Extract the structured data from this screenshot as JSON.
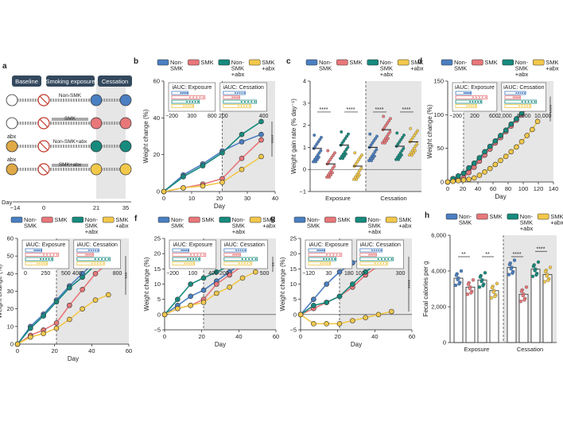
{
  "colors": {
    "non_smk": "#4a7fc1",
    "smk": "#e8777a",
    "non_smk_abx": "#178a7e",
    "smk_abx": "#f2c84b",
    "shade": "#e6e6e6",
    "baseline_box": "#34495e"
  },
  "panel_a": {
    "label": "a",
    "phases": [
      "Baseline",
      "Smoking exposure",
      "Cessation"
    ],
    "groups": [
      {
        "label": "Non-SMK",
        "abx": ""
      },
      {
        "label": "SMK",
        "abx": ""
      },
      {
        "label": "Non-SMK+abx",
        "abx": "abx"
      },
      {
        "label": "SMK+abx",
        "abx": "abx"
      }
    ],
    "day_label": "Day",
    "ticks": [
      "−14",
      "0",
      "21",
      "35"
    ]
  },
  "panel_b": {
    "label": "b",
    "legend": [
      "Non-\nSMK",
      "SMK",
      "Non-\nSMK\n+abx",
      "SMK\n+abx"
    ],
    "inset_titles": [
      "iAUC: Exposure",
      "iAUC: Cessation"
    ],
    "inset_ticks_1": [
      "−200",
      "300",
      "800"
    ],
    "inset_ticks_2": [
      "200",
      "400"
    ],
    "sig": "****"
  },
  "panel_c": {
    "label": "c",
    "legend": [
      "Non-\nSMK",
      "SMK",
      "Non-\nSMK\n+abx",
      "SMK\n+abx"
    ],
    "sig": "****"
  },
  "panel_d": {
    "label": "d",
    "legend": [
      "Non-\nSMK",
      "SMK",
      "Non-\nSMK\n+abx",
      "SMK\n+abx"
    ],
    "inset_titles": [
      "iAUC: Exposure",
      "iAUC: Cessation"
    ],
    "inset_ticks_1": [
      "−200",
      "200",
      "600"
    ],
    "inset_ticks_2": [
      "2,000",
      "6,000",
      "10,000"
    ],
    "sig": "****"
  },
  "panel_e": {
    "label": "e",
    "legend": [
      "Non-\nSMK",
      "SMK",
      "Non-\nSMK\n+abx",
      "SMK\n+abx"
    ],
    "inset_titles": [
      "iAUC: Exposure",
      "iAUC: Cessation"
    ],
    "inset_ticks_1": [
      "0",
      "250",
      "500"
    ],
    "inset_ticks_2": [
      "400",
      "800"
    ],
    "sig": "***"
  },
  "panel_f": {
    "label": "f",
    "legend": [
      "Non-\nSMK",
      "SMK",
      "Non-\nSMK\n+abx",
      "SMK\n+abx"
    ],
    "inset_titles": [
      "iAUC: Exposure",
      "iAUC: Cessation"
    ],
    "inset_ticks_1": [
      "−200",
      "100",
      "400"
    ],
    "inset_ticks_2": [
      "200",
      "500"
    ],
    "sig": "**"
  },
  "panel_g": {
    "label": "g",
    "legend": [
      "Non-\nSMK",
      "SMK",
      "Non-\nSMK\n+abx",
      "SMK\n+abx"
    ],
    "inset_titles": [
      "iAUC: Exposure",
      "iAUC: Cessation"
    ],
    "inset_ticks_1": [
      "−120",
      "30",
      "180"
    ],
    "inset_ticks_2": [
      "100",
      "300"
    ],
    "sig": "****"
  },
  "panel_h": {
    "label": "h",
    "legend": [
      "Non-\nSMK",
      "SMK",
      "Non-\nSMK\n+abx",
      "SMK\n+abx"
    ],
    "sig": [
      "**",
      "**",
      "****",
      "****"
    ]
  },
  "chart_data": [
    {
      "type": "line",
      "panel": "b",
      "xlabel": "Day",
      "ylabel": "Weight change (%)",
      "xlim": [
        0,
        40
      ],
      "ylim": [
        0,
        60
      ],
      "xticks": [
        0,
        10,
        20,
        30,
        40
      ],
      "yticks": [
        0,
        20,
        40,
        60
      ],
      "shade_from": 21,
      "series": [
        {
          "key": "non_smk",
          "x": [
            0,
            7,
            14,
            21,
            28,
            35
          ],
          "y": [
            0,
            9,
            15,
            22,
            27,
            31
          ]
        },
        {
          "key": "smk",
          "x": [
            0,
            7,
            14,
            21,
            28,
            35
          ],
          "y": [
            0,
            2,
            4,
            7,
            18,
            28
          ]
        },
        {
          "key": "non_smk_abx",
          "x": [
            0,
            7,
            14,
            21,
            28,
            35
          ],
          "y": [
            0,
            8,
            14,
            21,
            31,
            38
          ]
        },
        {
          "key": "smk_abx",
          "x": [
            0,
            7,
            14,
            21,
            28,
            35
          ],
          "y": [
            0,
            2,
            3,
            5,
            12,
            19
          ]
        }
      ]
    },
    {
      "type": "scatter",
      "panel": "c",
      "xlabel": "",
      "ylabel": "Weight gain rate (% day⁻¹)",
      "ylim": [
        -1,
        4
      ],
      "yticks": [
        -1,
        0,
        1,
        2,
        3,
        4
      ],
      "categories": [
        "Exposure",
        "Cessation"
      ],
      "means": {
        "Exposure": [
          0.95,
          0.25,
          1.1,
          0.15
        ],
        "Cessation": [
          1.0,
          1.8,
          1.05,
          1.25
        ]
      }
    },
    {
      "type": "line",
      "panel": "d",
      "xlabel": "Day",
      "ylabel": "Weight change (%)",
      "xlim": [
        0,
        140
      ],
      "ylim": [
        0,
        150
      ],
      "xticks": [
        0,
        20,
        40,
        60,
        80,
        100,
        120,
        140
      ],
      "yticks": [
        0,
        50,
        100,
        150
      ],
      "shade_from": 21,
      "series": [
        {
          "key": "non_smk",
          "x": [
            0,
            7,
            14,
            21,
            28,
            35,
            42,
            49,
            56,
            63,
            70,
            77,
            84,
            91,
            98,
            105,
            112,
            119
          ],
          "y": [
            0,
            5,
            9,
            13,
            20,
            27,
            35,
            44,
            52,
            60,
            68,
            76,
            85,
            93,
            101,
            110,
            118,
            126
          ]
        },
        {
          "key": "smk",
          "x": [
            0,
            7,
            14,
            21,
            28,
            35,
            42,
            49,
            56,
            63,
            70,
            77,
            84,
            91,
            98,
            105,
            112,
            119
          ],
          "y": [
            0,
            2,
            4,
            6,
            14,
            22,
            31,
            40,
            49,
            58,
            66,
            75,
            83,
            92,
            100,
            109,
            117,
            125
          ]
        },
        {
          "key": "non_smk_abx",
          "x": [
            0,
            7,
            14,
            21,
            28,
            35,
            42,
            49,
            56,
            63,
            70,
            77,
            84,
            91,
            98,
            105,
            112,
            119
          ],
          "y": [
            0,
            5,
            9,
            13,
            21,
            28,
            36,
            45,
            53,
            61,
            69,
            77,
            86,
            94,
            102,
            111,
            119,
            127
          ]
        },
        {
          "key": "smk_abx",
          "x": [
            0,
            7,
            14,
            21,
            28,
            35,
            42,
            49,
            56,
            63,
            70,
            77,
            84,
            91,
            98,
            105,
            112,
            119
          ],
          "y": [
            0,
            1,
            2,
            3,
            4,
            6,
            10,
            15,
            20,
            26,
            32,
            38,
            45,
            52,
            60,
            69,
            78,
            90
          ]
        }
      ]
    },
    {
      "type": "line",
      "panel": "e",
      "xlabel": "Day",
      "ylabel": "Weight change (%)",
      "xlim": [
        0,
        60
      ],
      "ylim": [
        0,
        60
      ],
      "xticks": [
        0,
        20,
        40,
        60
      ],
      "yticks": [
        0,
        10,
        20,
        30,
        40,
        50,
        60
      ],
      "shade_from": 21,
      "series": [
        {
          "key": "non_smk",
          "x": [
            0,
            7,
            14,
            21,
            28,
            35,
            42,
            49
          ],
          "y": [
            0,
            10,
            17,
            25,
            33,
            40,
            47,
            53
          ]
        },
        {
          "key": "smk",
          "x": [
            0,
            7,
            14,
            21,
            28,
            35,
            42,
            49
          ],
          "y": [
            0,
            5,
            8,
            12,
            22,
            31,
            40,
            46
          ]
        },
        {
          "key": "non_smk_abx",
          "x": [
            0,
            7,
            14,
            21,
            28,
            35,
            42,
            49
          ],
          "y": [
            0,
            9,
            16,
            24,
            32,
            38,
            45,
            50
          ]
        },
        {
          "key": "smk_abx",
          "x": [
            0,
            7,
            14,
            21,
            28,
            35,
            42,
            49
          ],
          "y": [
            0,
            4,
            6,
            9,
            14,
            20,
            25,
            28
          ]
        }
      ]
    },
    {
      "type": "line",
      "panel": "f",
      "xlabel": "Day",
      "ylabel": "Weight change (%)",
      "xlim": [
        0,
        60
      ],
      "ylim": [
        -5,
        25
      ],
      "xticks": [
        0,
        20,
        40,
        60
      ],
      "yticks": [
        -5,
        0,
        5,
        10,
        15,
        20,
        25
      ],
      "shade_from": 21,
      "series": [
        {
          "key": "non_smk",
          "x": [
            0,
            7,
            14,
            21,
            28,
            35,
            42,
            49
          ],
          "y": [
            0,
            3,
            6,
            8,
            11,
            14,
            17,
            19
          ]
        },
        {
          "key": "smk",
          "x": [
            0,
            7,
            14,
            21,
            28,
            35,
            42,
            49
          ],
          "y": [
            0,
            2,
            3,
            5,
            10,
            13,
            16,
            18
          ]
        },
        {
          "key": "non_smk_abx",
          "x": [
            0,
            7,
            14,
            21,
            28,
            35,
            42,
            49
          ],
          "y": [
            0,
            5,
            10,
            12,
            14,
            16,
            18,
            19
          ]
        },
        {
          "key": "smk_abx",
          "x": [
            0,
            7,
            14,
            21,
            28,
            35,
            42,
            49
          ],
          "y": [
            0,
            2,
            3,
            4,
            7,
            9,
            12,
            14
          ]
        }
      ]
    },
    {
      "type": "line",
      "panel": "g",
      "xlabel": "Day",
      "ylabel": "Weight change (%)",
      "xlim": [
        0,
        60
      ],
      "ylim": [
        -5,
        25
      ],
      "xticks": [
        0,
        20,
        40,
        60
      ],
      "yticks": [
        -5,
        0,
        5,
        10,
        15,
        20,
        25
      ],
      "shade_from": 21,
      "series": [
        {
          "key": "non_smk",
          "x": [
            0,
            7,
            14,
            21,
            28,
            35,
            42,
            49
          ],
          "y": [
            0,
            5,
            10,
            14,
            17,
            19,
            21,
            22
          ]
        },
        {
          "key": "smk",
          "x": [
            0,
            7,
            14,
            21,
            28,
            35,
            42,
            49
          ],
          "y": [
            0,
            2,
            4,
            6,
            9,
            13,
            16,
            18
          ]
        },
        {
          "key": "non_smk_abx",
          "x": [
            0,
            7,
            14,
            21,
            28,
            35,
            42,
            49
          ],
          "y": [
            0,
            3,
            4,
            6,
            10,
            14,
            17,
            19
          ]
        },
        {
          "key": "smk_abx",
          "x": [
            0,
            7,
            14,
            21,
            28,
            35,
            42,
            49
          ],
          "y": [
            0,
            -3,
            -3,
            -3,
            -2,
            -1,
            0,
            1
          ]
        }
      ]
    },
    {
      "type": "bar",
      "panel": "h",
      "xlabel": "",
      "ylabel": "Fecal calories per g",
      "ylim": [
        0,
        6000
      ],
      "yticks": [
        0,
        2000,
        4000,
        6000
      ],
      "categories": [
        "Exposure",
        "Cessation"
      ],
      "series": [
        {
          "key": "non_smk",
          "values": [
            3600,
            4200
          ]
        },
        {
          "key": "smk",
          "values": [
            3100,
            2700
          ]
        },
        {
          "key": "non_smk_abx",
          "values": [
            3500,
            4100
          ]
        },
        {
          "key": "smk_abx",
          "values": [
            2900,
            3800
          ]
        }
      ]
    }
  ]
}
